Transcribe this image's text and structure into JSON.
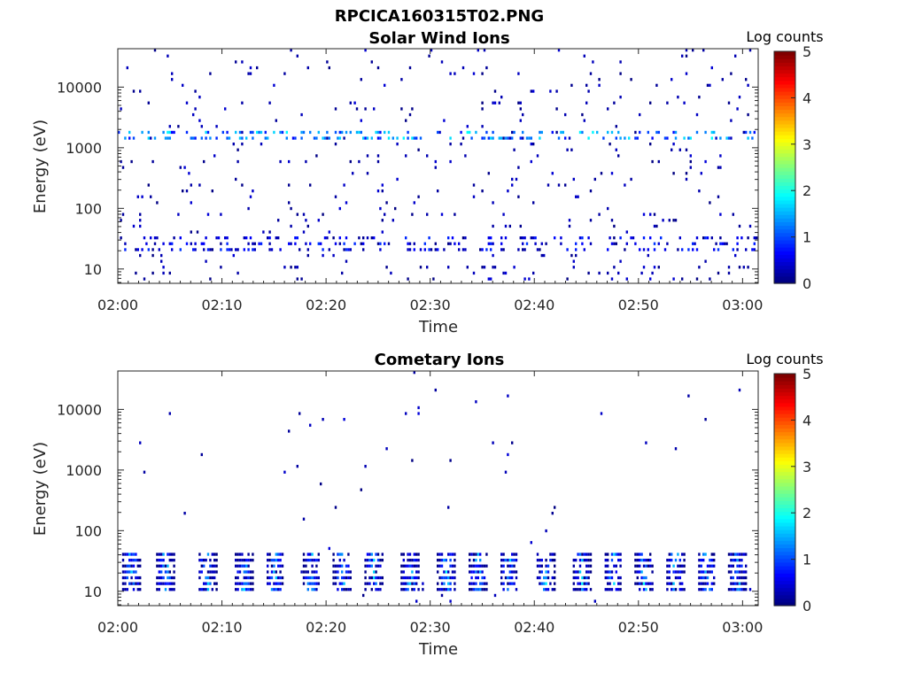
{
  "figure_title": "RPCICA160315T02.PNG",
  "colorbar_label": "Log counts",
  "chart_data": [
    {
      "type": "heatmap",
      "title": "Solar Wind Ions",
      "xlabel": "Time",
      "ylabel": "Energy (eV)",
      "x_ticks": [
        "02:00",
        "02:10",
        "02:20",
        "02:30",
        "02:40",
        "02:50",
        "03:00"
      ],
      "x_range_minutes": [
        0,
        61.5
      ],
      "y_ticks": [
        "10",
        "100",
        "1000",
        "10000"
      ],
      "y_tick_values": [
        10,
        100,
        1000,
        10000
      ],
      "y_range": [
        5.8,
        43000
      ],
      "y_scale": "log",
      "colorbar": {
        "label": "Log counts",
        "ticks": [
          "0",
          "1",
          "2",
          "3",
          "4",
          "5"
        ],
        "range": [
          0,
          5
        ],
        "colormap": "jet"
      },
      "bands": [
        {
          "energy_min": 18,
          "energy_max": 36,
          "level_min": 0,
          "level_max": 0.9,
          "density": 0.22
        },
        {
          "energy_min": 1350,
          "energy_max": 1900,
          "level_min": 0.6,
          "level_max": 1.9,
          "density": 0.28
        },
        {
          "energy_min": 8,
          "energy_max": 12,
          "level_min": 0,
          "level_max": 0.3,
          "density": 0.04
        }
      ],
      "scatter_density": 0.03
    },
    {
      "type": "heatmap",
      "title": "Cometary Ions",
      "xlabel": "Time",
      "ylabel": "Energy (eV)",
      "x_ticks": [
        "02:00",
        "02:10",
        "02:20",
        "02:30",
        "02:40",
        "02:50",
        "03:00"
      ],
      "x_range_minutes": [
        0,
        61.5
      ],
      "y_ticks": [
        "10",
        "100",
        "1000",
        "10000"
      ],
      "y_tick_values": [
        10,
        100,
        1000,
        10000
      ],
      "y_range": [
        5.8,
        43000
      ],
      "y_scale": "log",
      "colorbar": {
        "label": "Log counts",
        "ticks": [
          "0",
          "1",
          "2",
          "3",
          "4",
          "5"
        ],
        "range": [
          0,
          5
        ],
        "colormap": "jet"
      },
      "bursts_minutes": [
        1.2,
        4.5,
        8.5,
        12,
        15,
        18.5,
        21.5,
        24.5,
        28,
        31.5,
        34.5,
        37.5,
        41,
        44.5,
        47.5,
        50.5,
        53.5,
        56.5,
        59.5
      ],
      "burst_energy_range": [
        12,
        40
      ],
      "burst_level_range": [
        0,
        2.0
      ],
      "scatter_density": 0.006
    }
  ]
}
